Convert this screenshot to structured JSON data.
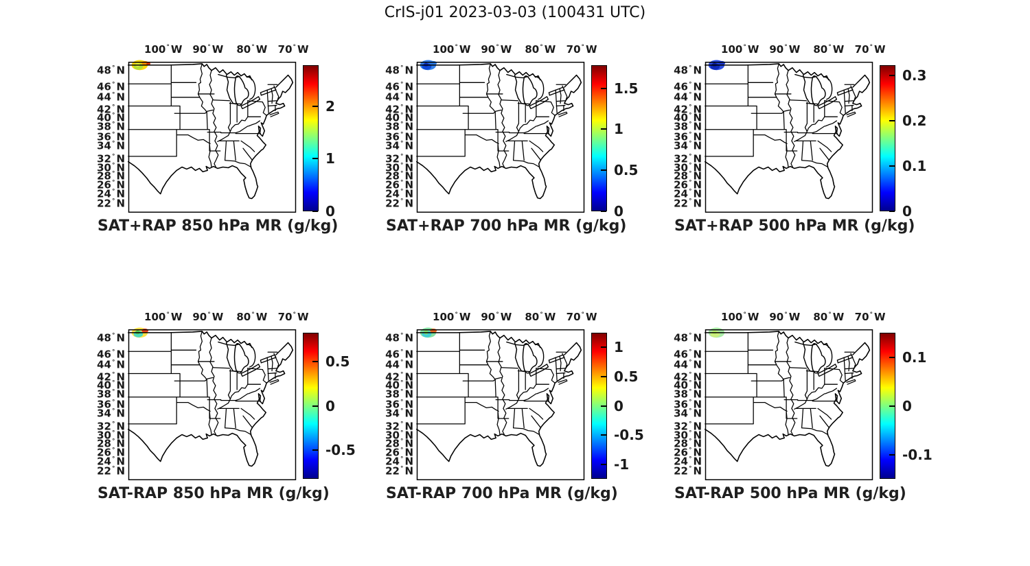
{
  "figure": {
    "title": "CrIS-j01 2023-03-03 (100431 UTC)",
    "background": "#ffffff",
    "text_color": "#1a1a1a",
    "instrument": "CrIS-j01",
    "date": "2023-03-03",
    "time_utc": "100431"
  },
  "map_axes": {
    "lon_ticks": [
      {
        "value": "100",
        "suffix": "W"
      },
      {
        "value": "90",
        "suffix": "W"
      },
      {
        "value": "80",
        "suffix": "W"
      },
      {
        "value": "70",
        "suffix": "W"
      }
    ],
    "lat_ticks": [
      {
        "value": "48",
        "suffix": "N"
      },
      {
        "value": "46",
        "suffix": "N"
      },
      {
        "value": "44",
        "suffix": "N"
      },
      {
        "value": "42",
        "suffix": "N"
      },
      {
        "value": "40",
        "suffix": "N"
      },
      {
        "value": "38",
        "suffix": "N"
      },
      {
        "value": "36",
        "suffix": "N"
      },
      {
        "value": "34",
        "suffix": "N"
      },
      {
        "value": "32",
        "suffix": "N"
      },
      {
        "value": "30",
        "suffix": "N"
      },
      {
        "value": "28",
        "suffix": "N"
      },
      {
        "value": "26",
        "suffix": "N"
      },
      {
        "value": "24",
        "suffix": "N"
      },
      {
        "value": "22",
        "suffix": "N"
      }
    ],
    "region_note": "Central and eastern CONUS with state boundaries, lon ~105W-63W, lat ~22N-49.5N"
  },
  "colormap": {
    "name": "jet",
    "stops": [
      "#00008f",
      "#0000ff",
      "#00ffff",
      "#ffff00",
      "#ff0000",
      "#800000"
    ]
  },
  "chart_data": [
    {
      "id": "sat-plus-rap-850",
      "type": "map",
      "row": 0,
      "col": 0,
      "title": "SAT+RAP 850 hPa MR (g/kg)",
      "colorbar": {
        "vmin": 0,
        "vmax": 2.78,
        "ticks": [
          {
            "value": 2,
            "label": "2"
          },
          {
            "value": 1,
            "label": "1"
          },
          {
            "value": 0,
            "label": "0"
          }
        ]
      },
      "swath": {
        "location": "NW corner of map, ~47.5-49.5N 103-106W",
        "approx_values": "~1.3-2.5 g/kg (green-yellow-orange-red)",
        "colors": [
          "#ffd800",
          "#b0e03c",
          "#e8f03c",
          "#ff9100",
          "#e03000"
        ]
      }
    },
    {
      "id": "sat-plus-rap-700",
      "type": "map",
      "row": 0,
      "col": 1,
      "title": "SAT+RAP 700 hPa MR (g/kg)",
      "colorbar": {
        "vmin": 0,
        "vmax": 1.78,
        "ticks": [
          {
            "value": 1.5,
            "label": "1.5"
          },
          {
            "value": 1,
            "label": "1"
          },
          {
            "value": 0.5,
            "label": "0.5"
          },
          {
            "value": 0,
            "label": "0"
          }
        ]
      },
      "swath": {
        "location": "NW corner of map, ~47.5-49.5N 103-106W",
        "approx_values": "~0.2-0.6 g/kg (medium-dark blue)",
        "colors": [
          "#2b7ceb",
          "#0d47d8",
          "#0a2ec0",
          "#2b7ceb"
        ]
      }
    },
    {
      "id": "sat-plus-rap-500",
      "type": "map",
      "row": 0,
      "col": 2,
      "title": "SAT+RAP 500 hPa MR (g/kg)",
      "colorbar": {
        "vmin": 0,
        "vmax": 0.322,
        "ticks": [
          {
            "value": 0.3,
            "label": "0.3"
          },
          {
            "value": 0.2,
            "label": "0.2"
          },
          {
            "value": 0.1,
            "label": "0.1"
          },
          {
            "value": 0,
            "label": "0"
          }
        ]
      },
      "swath": {
        "location": "NW corner of map, ~47.5-49.5N 103-106W",
        "approx_values": "~0.02-0.10 g/kg (dark blue)",
        "colors": [
          "#2347e3",
          "#0e27b8",
          "#081b99",
          "#1b38d0"
        ]
      }
    },
    {
      "id": "sat-minus-rap-850",
      "type": "map",
      "row": 1,
      "col": 0,
      "title": "SAT-RAP 850 hPa MR (g/kg)",
      "colorbar": {
        "vmin": -0.82,
        "vmax": 0.82,
        "ticks": [
          {
            "value": 0.5,
            "label": "0.5"
          },
          {
            "value": 0,
            "label": "0"
          },
          {
            "value": -0.5,
            "label": "-0.5"
          }
        ]
      },
      "swath": {
        "location": "NW corner of map, ~47.5-49.5N 103-106W",
        "approx_values": "~-0.2 to +0.6 g/kg (cyan/green/yellow with red spot)",
        "colors": [
          "#ffe03c",
          "#45d8c5",
          "#55ca4e",
          "#ee3b1a"
        ]
      }
    },
    {
      "id": "sat-minus-rap-700",
      "type": "map",
      "row": 1,
      "col": 1,
      "title": "SAT-RAP 700 hPa MR (g/kg)",
      "colorbar": {
        "vmin": -1.24,
        "vmax": 1.24,
        "ticks": [
          {
            "value": 1,
            "label": "1"
          },
          {
            "value": 0.5,
            "label": "0.5"
          },
          {
            "value": 0,
            "label": "0"
          },
          {
            "value": -0.5,
            "label": "-0.5"
          },
          {
            "value": -1,
            "label": "-1"
          }
        ]
      },
      "swath": {
        "location": "NW corner of map, ~47.5-49.5N 103-106W",
        "approx_values": "~-0.3 to +0.8 g/kg (cyan/green with orange-red spot)",
        "colors": [
          "#7ddf9d",
          "#3ecdd6",
          "#86df63",
          "#f0631e"
        ]
      }
    },
    {
      "id": "sat-minus-rap-500",
      "type": "map",
      "row": 1,
      "col": 2,
      "title": "SAT-RAP 500 hPa MR (g/kg)",
      "colorbar": {
        "vmin": -0.15,
        "vmax": 0.15,
        "ticks": [
          {
            "value": 0.1,
            "label": "0.1"
          },
          {
            "value": 0,
            "label": "0"
          },
          {
            "value": -0.1,
            "label": "-0.1"
          }
        ]
      },
      "swath": {
        "location": "NW corner of map, ~47.5-49.5N 103-106W",
        "approx_values": "~0 to +0.05 g/kg (pale green / yellow-green)",
        "colors": [
          "#a6eca2",
          "#cdee7c",
          "#b7ef66"
        ]
      }
    }
  ]
}
